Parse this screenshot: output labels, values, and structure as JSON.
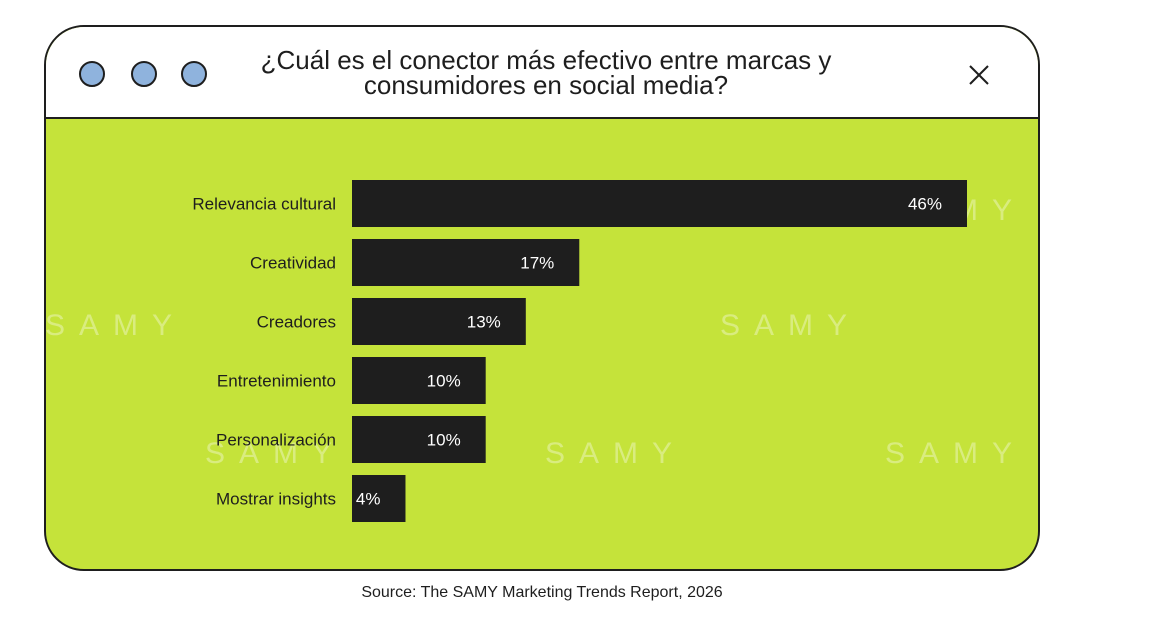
{
  "window": {
    "title": "¿Cuál es el conector más efectivo entre marcas y consumidores en social media?",
    "close_icon": "close-icon",
    "dot_icons": [
      "window-dot-icon",
      "window-dot-icon",
      "window-dot-icon"
    ]
  },
  "colors": {
    "background": "#c5e33a",
    "bar": "#1e1e1e",
    "dot": "#8fb3dd",
    "text": "#1e1e1e",
    "bar_label": "#ffffff"
  },
  "watermark": "SAMY",
  "chart_data": {
    "type": "bar",
    "orientation": "horizontal",
    "categories": [
      "Relevancia cultural",
      "Creatividad",
      "Creadores",
      "Entretenimiento",
      "Personalización",
      "Mostrar insights"
    ],
    "values": [
      46,
      17,
      13,
      10,
      10,
      4
    ],
    "data_labels": [
      "46%",
      "17%",
      "13%",
      "10%",
      "10%",
      "4%"
    ],
    "unit": "%",
    "xlim": [
      0,
      46
    ],
    "grid": false,
    "legend": "none"
  },
  "source": "Source: The SAMY Marketing Trends Report, 2026"
}
